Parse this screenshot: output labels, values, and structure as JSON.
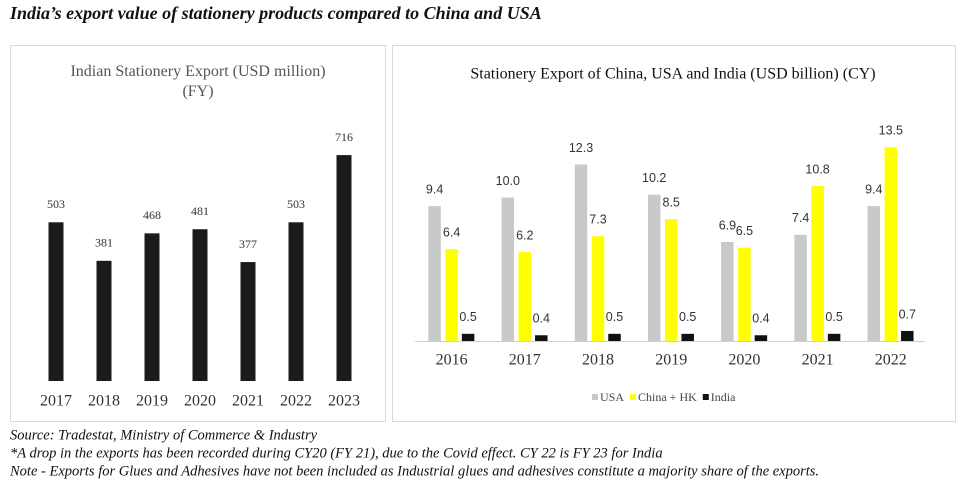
{
  "header": {
    "title": "India’s export value of stationery products compared to China and USA"
  },
  "chart_data": [
    {
      "type": "bar",
      "title": "Indian Stationery Export (USD million) (FY)",
      "categories": [
        "2017",
        "2018",
        "2019",
        "2020",
        "2021",
        "2022",
        "2023"
      ],
      "values": [
        503,
        381,
        468,
        481,
        377,
        503,
        716
      ],
      "color": "#1a1a1a"
    },
    {
      "type": "bar",
      "title": "Stationery Export of China, USA and India (USD billion) (CY)",
      "categories": [
        "2016",
        "2017",
        "2018",
        "2019",
        "2020",
        "2021",
        "2022"
      ],
      "series": [
        {
          "name": "USA",
          "color": "#c9c9c9",
          "values": [
            9.4,
            10.0,
            12.3,
            10.2,
            6.9,
            7.4,
            9.4
          ],
          "value_labels": [
            "9.4",
            "10.0",
            "12.3",
            "10.2",
            "6.9",
            "7.4",
            "9.4"
          ]
        },
        {
          "name": "China + HK",
          "color": "#ffff00",
          "values": [
            6.4,
            6.2,
            7.3,
            8.5,
            6.5,
            10.8,
            13.5
          ]
        },
        {
          "name": "India",
          "color": "#111111",
          "values": [
            0.5,
            0.4,
            0.5,
            0.5,
            0.4,
            0.5,
            0.7
          ]
        }
      ],
      "legend": "bottom"
    }
  ],
  "notes": [
    "Source: Tradestat, Ministry of Commerce & Industry",
    "*A drop in the exports has been recorded during CY20 (FY 21), due to the Covid effect. CY 22 is FY 23 for India",
    "Note - Exports for Glues and Adhesives have not been included as Industrial glues and adhesives constitute a majority share of the exports."
  ]
}
